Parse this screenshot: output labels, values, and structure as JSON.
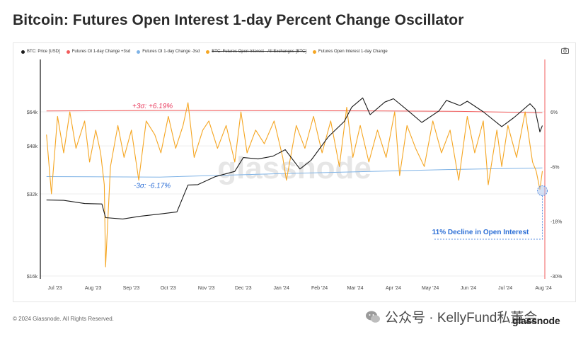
{
  "title": "Bitcoin: Futures Open Interest 1-day Percent Change Oscillator",
  "legend": [
    {
      "label": "BTC: Price [USD]",
      "color": "#1a1a1a",
      "strike": false
    },
    {
      "label": "Futures OI 1-day Change +3sd",
      "color": "#f25c5c",
      "strike": false
    },
    {
      "label": "Futures OI 1-day Change -3sd",
      "color": "#7fb3e6",
      "strike": false
    },
    {
      "label": "BTC: Futures Open Interest - All Exchanges [BTC]",
      "color": "#f5a623",
      "strike": true
    },
    {
      "label": "Futures Open Interest 1-day Change",
      "color": "#f5a623",
      "strike": false
    }
  ],
  "watermark": "glassnode",
  "footer": "© 2024 Glassnode. All Rights Reserved.",
  "wechat_watermark": "公众号 · KellyFund私董会",
  "brand": "glassnode",
  "icons": {
    "camera": "camera-icon",
    "wechat": "wechat-icon"
  },
  "chart_data": {
    "type": "line",
    "x_ticks": [
      "Jul '23",
      "Aug '23",
      "Sep '23",
      "Oct '23",
      "Nov '23",
      "Dec '23",
      "Jan '24",
      "Feb '24",
      "Mar '24",
      "Apr '24",
      "May '24",
      "Jun '24",
      "Jul '24",
      "Aug '24"
    ],
    "y_left": {
      "scale": "log",
      "ticks": [
        "$16k",
        "$32k",
        "$48k",
        "$64k"
      ],
      "values": [
        16000,
        32000,
        48000,
        64000
      ]
    },
    "y_right": {
      "ticks": [
        "6%",
        "-6%",
        "-18%",
        "-30%"
      ],
      "values": [
        6,
        -6,
        -18,
        -30
      ]
    },
    "annotations": {
      "upper": "+3σ: +6.19%",
      "lower": "-3σ: -6.17%",
      "callout": "11% Decline in Open Interest"
    },
    "series": [
      {
        "name": "BTC: Price [USD]",
        "axis": "left",
        "color": "#1a1a1a",
        "x": [
          "2023-07-01",
          "2023-07-15",
          "2023-08-01",
          "2023-08-15",
          "2023-08-18",
          "2023-09-01",
          "2023-09-15",
          "2023-10-01",
          "2023-10-15",
          "2023-10-24",
          "2023-11-01",
          "2023-11-15",
          "2023-12-01",
          "2023-12-08",
          "2023-12-20",
          "2024-01-01",
          "2024-01-11",
          "2024-01-23",
          "2024-02-01",
          "2024-02-15",
          "2024-02-28",
          "2024-03-05",
          "2024-03-14",
          "2024-03-20",
          "2024-04-01",
          "2024-04-08",
          "2024-04-20",
          "2024-05-01",
          "2024-05-15",
          "2024-05-21",
          "2024-06-01",
          "2024-06-07",
          "2024-06-20",
          "2024-07-05",
          "2024-07-15",
          "2024-07-28",
          "2024-08-01",
          "2024-08-05",
          "2024-08-07"
        ],
        "y": [
          30400,
          30300,
          29500,
          29400,
          26200,
          25900,
          26500,
          27000,
          27500,
          34500,
          34600,
          37000,
          38700,
          43500,
          43000,
          44000,
          46500,
          39500,
          42500,
          51800,
          59000,
          66500,
          72000,
          62500,
          69500,
          71500,
          64500,
          58500,
          64500,
          70500,
          67500,
          70000,
          64000,
          56500,
          61000,
          68500,
          65500,
          54000,
          57000
        ]
      },
      {
        "name": "Futures OI 1-day Change +3sd",
        "axis": "right",
        "color": "#f25c5c",
        "x": [
          "2023-07-01",
          "2023-10-01",
          "2024-01-01",
          "2024-04-01",
          "2024-06-01",
          "2024-08-07"
        ],
        "y": [
          6.2,
          6.3,
          6.25,
          6.2,
          6.1,
          5.8
        ]
      },
      {
        "name": "Futures OI 1-day Change -3sd",
        "axis": "right",
        "color": "#7fb3e6",
        "x": [
          "2023-07-01",
          "2023-10-01",
          "2024-01-01",
          "2024-04-01",
          "2024-06-01",
          "2024-08-07"
        ],
        "y": [
          -8.2,
          -8.3,
          -7.6,
          -7.0,
          -6.6,
          -6.3
        ]
      },
      {
        "name": "Futures Open Interest 1-day Change",
        "axis": "right",
        "color": "#f5a623",
        "x": [
          "2023-07-01",
          "2023-07-05",
          "2023-07-10",
          "2023-07-15",
          "2023-07-20",
          "2023-07-25",
          "2023-08-01",
          "2023-08-05",
          "2023-08-10",
          "2023-08-14",
          "2023-08-17",
          "2023-08-18",
          "2023-08-22",
          "2023-08-28",
          "2023-09-02",
          "2023-09-08",
          "2023-09-14",
          "2023-09-20",
          "2023-09-27",
          "2023-10-02",
          "2023-10-08",
          "2023-10-14",
          "2023-10-20",
          "2023-10-24",
          "2023-10-29",
          "2023-11-05",
          "2023-11-10",
          "2023-11-17",
          "2023-11-24",
          "2023-12-01",
          "2023-12-06",
          "2023-12-11",
          "2023-12-18",
          "2023-12-25",
          "2024-01-02",
          "2024-01-09",
          "2024-01-12",
          "2024-01-20",
          "2024-01-27",
          "2024-02-03",
          "2024-02-10",
          "2024-02-17",
          "2024-02-24",
          "2024-03-01",
          "2024-03-06",
          "2024-03-12",
          "2024-03-19",
          "2024-03-26",
          "2024-04-02",
          "2024-04-09",
          "2024-04-13",
          "2024-04-19",
          "2024-04-26",
          "2024-05-03",
          "2024-05-10",
          "2024-05-17",
          "2024-05-24",
          "2024-05-31",
          "2024-06-07",
          "2024-06-13",
          "2024-06-20",
          "2024-06-24",
          "2024-07-01",
          "2024-07-05",
          "2024-07-10",
          "2024-07-17",
          "2024-07-24",
          "2024-07-30",
          "2024-08-02",
          "2024-08-05",
          "2024-08-07"
        ],
        "y": [
          1,
          -12,
          5,
          -3,
          6,
          -2,
          4,
          -5,
          2,
          -3,
          -10,
          -28,
          -6,
          3,
          -4,
          2,
          -9,
          4,
          1,
          -3,
          5,
          -2,
          3,
          8,
          -4,
          2,
          4,
          -2,
          3,
          -5,
          6,
          -3,
          2,
          -1,
          4,
          -4,
          -9,
          3,
          -2,
          5,
          -3,
          4,
          -6,
          7,
          -4,
          3,
          -5,
          2,
          -4,
          6,
          -8,
          3,
          -2,
          -6,
          4,
          -3,
          2,
          -9,
          5,
          -3,
          4,
          -10,
          2,
          -6,
          3,
          -4,
          6,
          -5,
          -7,
          -11,
          -7
        ]
      }
    ]
  }
}
